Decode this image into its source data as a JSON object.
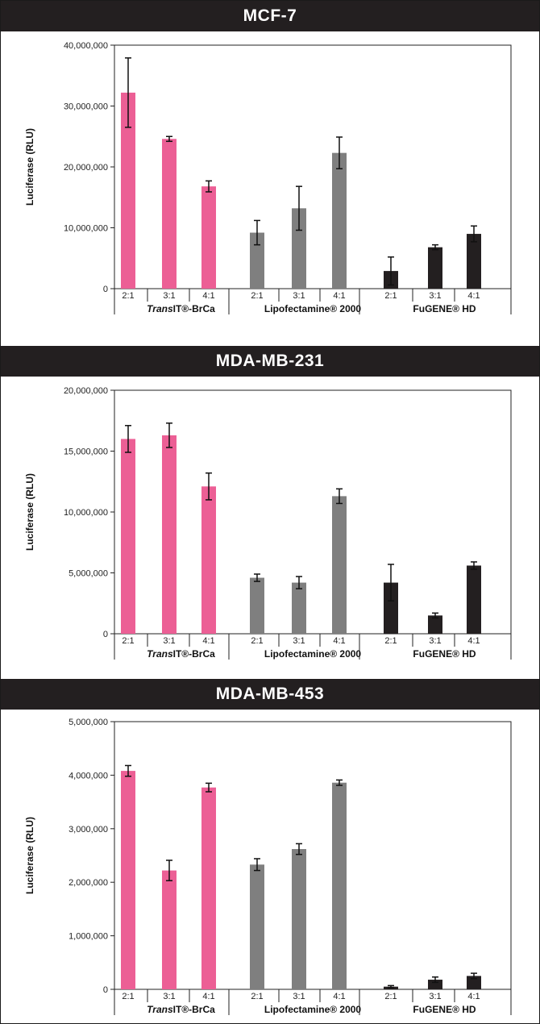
{
  "colors": {
    "transit": "#ec5f95",
    "lipofectamine": "#7f7f7f",
    "fugene": "#231f20",
    "header_bg": "#231f20"
  },
  "chart_data": [
    {
      "type": "bar",
      "title": "MCF-7",
      "ylabel": "Luciferase (RLU)",
      "ylim": [
        0,
        40000000
      ],
      "yticks": [
        0,
        10000000,
        20000000,
        30000000,
        40000000
      ],
      "ytick_labels": [
        "0",
        "10,000,000",
        "20,000,000",
        "30,000,000",
        "40,000,000"
      ],
      "groups": [
        {
          "name_italic": "Trans",
          "name_rest": "IT®-BrCa",
          "color": "#ec5f95",
          "categories": [
            "2:1",
            "3:1",
            "4:1"
          ],
          "values": [
            32200000,
            24600000,
            16800000
          ],
          "errors": [
            5700000,
            400000,
            900000
          ]
        },
        {
          "name_italic": "",
          "name_rest": "Lipofectamine® 2000",
          "color": "#7f7f7f",
          "categories": [
            "2:1",
            "3:1",
            "4:1"
          ],
          "values": [
            9200000,
            13200000,
            22300000
          ],
          "errors": [
            2000000,
            3600000,
            2600000
          ]
        },
        {
          "name_italic": "",
          "name_rest": "FuGENE® HD",
          "color": "#231f20",
          "categories": [
            "2:1",
            "3:1",
            "4:1"
          ],
          "values": [
            2900000,
            6800000,
            9000000
          ],
          "errors": [
            2300000,
            400000,
            1300000
          ]
        }
      ]
    },
    {
      "type": "bar",
      "title": "MDA-MB-231",
      "ylabel": "Luciferase (RLU)",
      "ylim": [
        0,
        20000000
      ],
      "yticks": [
        0,
        5000000,
        10000000,
        15000000,
        20000000
      ],
      "ytick_labels": [
        "0",
        "5,000,000",
        "10,000,000",
        "15,000,000",
        "20,000,000"
      ],
      "groups": [
        {
          "name_italic": "Trans",
          "name_rest": "IT®-BrCa",
          "color": "#ec5f95",
          "categories": [
            "2:1",
            "3:1",
            "4:1"
          ],
          "values": [
            16000000,
            16300000,
            12100000
          ],
          "errors": [
            1100000,
            1000000,
            1100000
          ]
        },
        {
          "name_italic": "",
          "name_rest": "Lipofectamine® 2000",
          "color": "#7f7f7f",
          "categories": [
            "2:1",
            "3:1",
            "4:1"
          ],
          "values": [
            4600000,
            4200000,
            11300000
          ],
          "errors": [
            300000,
            500000,
            600000
          ]
        },
        {
          "name_italic": "",
          "name_rest": "FuGENE® HD",
          "color": "#231f20",
          "categories": [
            "2:1",
            "3:1",
            "4:1"
          ],
          "values": [
            4200000,
            1500000,
            5600000
          ],
          "errors": [
            1500000,
            200000,
            300000
          ]
        }
      ]
    },
    {
      "type": "bar",
      "title": "MDA-MB-453",
      "ylabel": "Luciferase (RLU)",
      "ylim": [
        0,
        5000000
      ],
      "yticks": [
        0,
        1000000,
        2000000,
        3000000,
        4000000,
        5000000
      ],
      "ytick_labels": [
        "0",
        "1,000,000",
        "2,000,000",
        "3,000,000",
        "4,000,000",
        "5,000,000"
      ],
      "groups": [
        {
          "name_italic": "Trans",
          "name_rest": "IT®-BrCa",
          "color": "#ec5f95",
          "categories": [
            "2:1",
            "3:1",
            "4:1"
          ],
          "values": [
            4080000,
            2220000,
            3770000
          ],
          "errors": [
            100000,
            190000,
            80000
          ]
        },
        {
          "name_italic": "",
          "name_rest": "Lipofectamine® 2000",
          "color": "#7f7f7f",
          "categories": [
            "2:1",
            "3:1",
            "4:1"
          ],
          "values": [
            2330000,
            2620000,
            3860000
          ],
          "errors": [
            110000,
            100000,
            50000
          ]
        },
        {
          "name_italic": "",
          "name_rest": "FuGENE® HD",
          "color": "#231f20",
          "categories": [
            "2:1",
            "3:1",
            "4:1"
          ],
          "values": [
            50000,
            180000,
            250000
          ],
          "errors": [
            20000,
            50000,
            50000
          ]
        }
      ]
    }
  ]
}
